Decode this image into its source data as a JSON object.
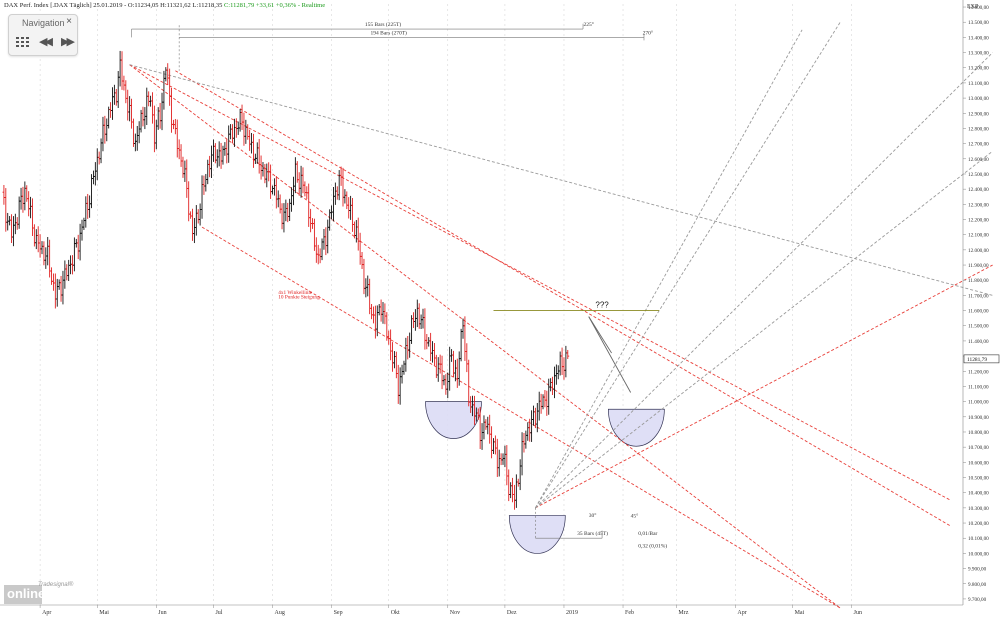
{
  "header": {
    "instrument": "DAX Perf. Index [.DAX Täglich] 25.01.2019 -",
    "quote": "O:11234,05 H:11321,62 L:11218,35",
    "change": "C:11281,79 +33,61 +0,36% - Realtime"
  },
  "navigation": {
    "title": "Navigation",
    "close": "×",
    "back": "◀◀",
    "forward": "▶▶"
  },
  "logo": {
    "brand": "online",
    "trademark": "Tradesignal®"
  },
  "chart_data": {
    "type": "ohlc",
    "currency_label": "EXP",
    "ylim": [
      9660,
      13620
    ],
    "y_ticks": [
      "9.700,00",
      "9.800,00",
      "9.900,00",
      "10.000,00",
      "10.100,00",
      "10.200,00",
      "10.300,00",
      "10.400,00",
      "10.500,00",
      "10.600,00",
      "10.700,00",
      "10.800,00",
      "10.900,00",
      "11.000,00",
      "11.100,00",
      "11.200,00",
      "11.300,00",
      "11.400,00",
      "11.500,00",
      "11.600,00",
      "11.700,00",
      "11.800,00",
      "11.900,00",
      "12.000,00",
      "12.100,00",
      "12.200,00",
      "12.300,00",
      "12.400,00",
      "12.500,00",
      "12.600,00",
      "12.700,00",
      "12.800,00",
      "12.900,00",
      "13.000,00",
      "13.100,00",
      "13.200,00",
      "13.300,00",
      "13.400,00",
      "13.500,00",
      "13.600,00"
    ],
    "y_tick_values": [
      9700,
      9800,
      9900,
      10000,
      10100,
      10200,
      10300,
      10400,
      10500,
      10600,
      10700,
      10800,
      10900,
      11000,
      11100,
      11200,
      11300,
      11400,
      11500,
      11600,
      11700,
      11800,
      11900,
      12000,
      12100,
      12200,
      12300,
      12400,
      12500,
      12600,
      12700,
      12800,
      12900,
      13000,
      13100,
      13200,
      13300,
      13400,
      13500,
      13600
    ],
    "x_labels": [
      "Apr",
      "Mai",
      "Jun",
      "Jul",
      "Aug",
      "Sep",
      "Okt",
      "Nov",
      "Dez",
      "2019",
      "Feb",
      "Mrz",
      "Apr",
      "Mai",
      "Jun"
    ],
    "x_label_days": [
      20,
      50,
      81,
      111,
      142,
      173,
      203,
      234,
      264,
      295,
      326,
      354,
      385,
      415,
      446
    ],
    "last_price": 11281.79,
    "last_price_label": "11281,79",
    "pivots": [
      [
        0,
        12350
      ],
      [
        5,
        12100
      ],
      [
        12,
        12400
      ],
      [
        18,
        12050
      ],
      [
        24,
        11950
      ],
      [
        28,
        11700
      ],
      [
        34,
        11850
      ],
      [
        40,
        12050
      ],
      [
        45,
        12300
      ],
      [
        51,
        12650
      ],
      [
        56,
        12900
      ],
      [
        60,
        13050
      ],
      [
        62,
        13200
      ],
      [
        66,
        12950
      ],
      [
        70,
        12700
      ],
      [
        74,
        12900
      ],
      [
        78,
        13000
      ],
      [
        80,
        12750
      ],
      [
        83,
        12900
      ],
      [
        86,
        13200
      ],
      [
        90,
        12800
      ],
      [
        94,
        12600
      ],
      [
        97,
        12400
      ],
      [
        100,
        12100
      ],
      [
        104,
        12300
      ],
      [
        108,
        12550
      ],
      [
        112,
        12650
      ],
      [
        115,
        12600
      ],
      [
        118,
        12700
      ],
      [
        122,
        12800
      ],
      [
        126,
        12850
      ],
      [
        130,
        12700
      ],
      [
        134,
        12600
      ],
      [
        138,
        12500
      ],
      [
        141,
        12450
      ],
      [
        144,
        12350
      ],
      [
        148,
        12200
      ],
      [
        151,
        12300
      ],
      [
        154,
        12500
      ],
      [
        157,
        12450
      ],
      [
        160,
        12350
      ],
      [
        163,
        12100
      ],
      [
        166,
        11950
      ],
      [
        169,
        12050
      ],
      [
        172,
        12200
      ],
      [
        175,
        12400
      ],
      [
        178,
        12450
      ],
      [
        181,
        12300
      ],
      [
        184,
        12200
      ],
      [
        187,
        12050
      ],
      [
        190,
        11800
      ],
      [
        193,
        11650
      ],
      [
        196,
        11500
      ],
      [
        199,
        11650
      ],
      [
        202,
        11450
      ],
      [
        205,
        11300
      ],
      [
        208,
        11100
      ],
      [
        211,
        11250
      ],
      [
        214,
        11450
      ],
      [
        218,
        11600
      ],
      [
        222,
        11450
      ],
      [
        226,
        11300
      ],
      [
        230,
        11200
      ],
      [
        233,
        11100
      ],
      [
        236,
        11300
      ],
      [
        239,
        11150
      ],
      [
        242,
        11550
      ],
      [
        245,
        11000
      ],
      [
        248,
        10950
      ],
      [
        251,
        10800
      ],
      [
        254,
        10850
      ],
      [
        257,
        10750
      ],
      [
        260,
        10600
      ],
      [
        263,
        10650
      ],
      [
        266,
        10450
      ],
      [
        269,
        10350
      ],
      [
        272,
        10600
      ],
      [
        275,
        10800
      ],
      [
        278,
        10850
      ],
      [
        281,
        10950
      ],
      [
        284,
        11000
      ],
      [
        287,
        11050
      ],
      [
        291,
        11200
      ],
      [
        294,
        11250
      ],
      [
        297,
        11300
      ]
    ],
    "annotations": {
      "bars_a": "155 Bars (225T)",
      "deg_a": "225°",
      "bars_b": "194 Bars (270T)",
      "deg_b": "270°",
      "winkel_1": "4x1 Winkellinie",
      "winkel_2": "10 Punkte Steigung",
      "question": "???",
      "deg_30": "30°",
      "deg_45": "45°",
      "bars_c": "35 Bars (45T)",
      "per_bar": "0,01/Bar",
      "small_pct": "0,32 (0,01%)"
    }
  }
}
